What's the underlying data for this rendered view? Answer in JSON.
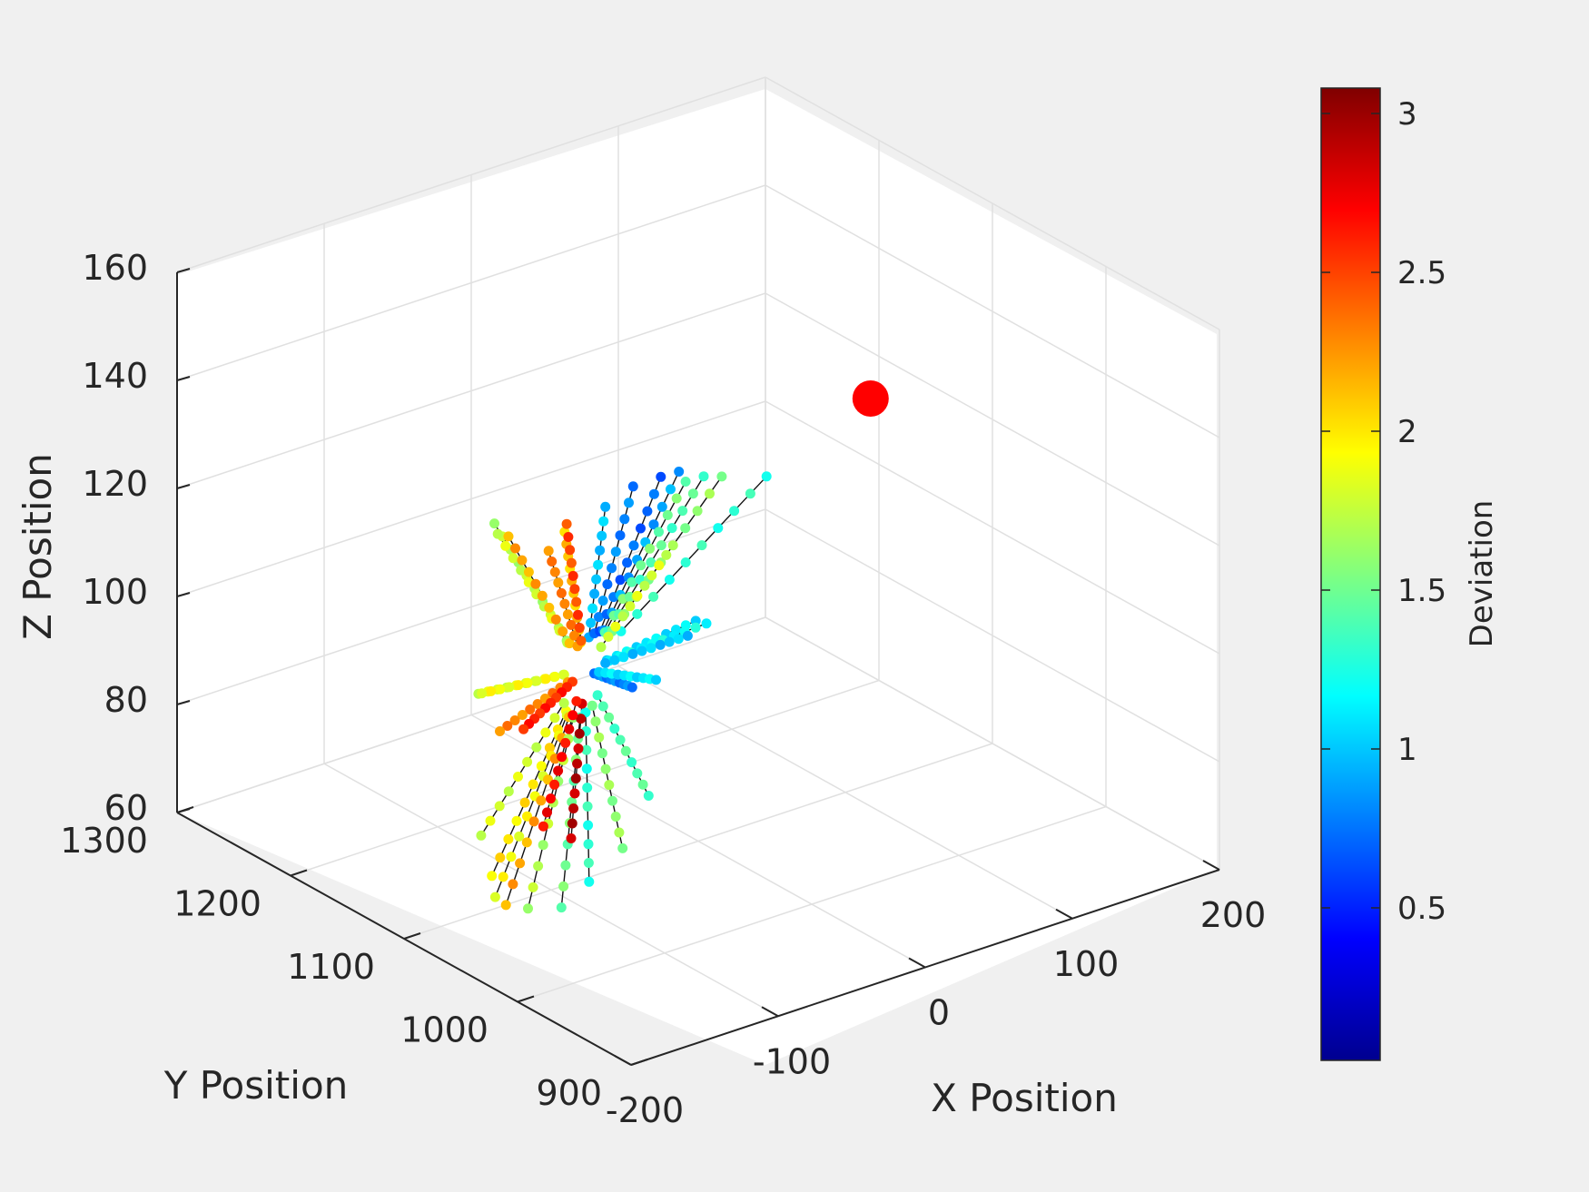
{
  "chart_data": {
    "type": "scatter3d",
    "xlabel": "X Position",
    "ylabel": "Y Position",
    "zlabel": "Z Position",
    "xlim": [
      -200,
      200
    ],
    "ylim": [
      900,
      1300
    ],
    "zlim": [
      60,
      160
    ],
    "xticks": [
      -200,
      -100,
      0,
      100,
      200
    ],
    "yticks": [
      900,
      1000,
      1100,
      1200,
      1300
    ],
    "zticks": [
      60,
      80,
      100,
      120,
      140,
      160
    ],
    "xtick_labels": [
      "-200",
      "-100",
      "0",
      "100",
      "200"
    ],
    "ytick_labels": [
      "900",
      "1000",
      "1100",
      "1200",
      "1300"
    ],
    "ztick_labels": [
      "60",
      "80",
      "100",
      "120",
      "140",
      "160"
    ],
    "grid": true,
    "colormap": "jet",
    "colorbar": {
      "label": "Deviation",
      "range": [
        0.02,
        3.08
      ],
      "ticks": [
        0.5,
        1,
        1.5,
        2,
        2.5,
        3
      ],
      "tick_labels": [
        "0.5",
        "1",
        "1.5",
        "2",
        "2.5",
        "3"
      ],
      "placement": "right"
    },
    "target": {
      "x": 40,
      "y": 1000,
      "z": 150,
      "color": "#ff0000"
    },
    "center": {
      "x": 0,
      "y": 1200,
      "z": 80
    },
    "trajectories": [
      {
        "end": {
          "x": -100,
          "y": 1150,
          "z": 122
        },
        "deviation": 1.7
      },
      {
        "end": {
          "x": -90,
          "y": 1160,
          "z": 118
        },
        "deviation": 1.8
      },
      {
        "end": {
          "x": -75,
          "y": 1170,
          "z": 115
        },
        "deviation": 2.2
      },
      {
        "end": {
          "x": -60,
          "y": 1140,
          "z": 118
        },
        "deviation": 2.1
      },
      {
        "end": {
          "x": -40,
          "y": 1130,
          "z": 122
        },
        "deviation": 1.0
      },
      {
        "end": {
          "x": -25,
          "y": 1125,
          "z": 125
        },
        "deviation": 0.8
      },
      {
        "end": {
          "x": -10,
          "y": 1120,
          "z": 126
        },
        "deviation": 0.7
      },
      {
        "end": {
          "x": 10,
          "y": 1130,
          "z": 124
        },
        "deviation": 0.9
      },
      {
        "end": {
          "x": 30,
          "y": 1150,
          "z": 118
        },
        "deviation": 1.5
      },
      {
        "end": {
          "x": 50,
          "y": 1160,
          "z": 116
        },
        "deviation": 1.4
      },
      {
        "end": {
          "x": 70,
          "y": 1170,
          "z": 113
        },
        "deviation": 1.6
      },
      {
        "end": {
          "x": 85,
          "y": 1150,
          "z": 114
        },
        "deviation": 1.3
      },
      {
        "end": {
          "x": 40,
          "y": 1180,
          "z": 100
        },
        "deviation": 1.8
      },
      {
        "end": {
          "x": -40,
          "y": 1180,
          "z": 108
        },
        "deviation": 2.3
      },
      {
        "end": {
          "x": -20,
          "y": 1190,
          "z": 110
        },
        "deviation": 2.5
      },
      {
        "end": {
          "x": -80,
          "y": 1190,
          "z": 84
        },
        "deviation": 1.8
      },
      {
        "end": {
          "x": -70,
          "y": 1200,
          "z": 82
        },
        "deviation": 1.9
      },
      {
        "end": {
          "x": 60,
          "y": 1180,
          "z": 86
        },
        "deviation": 1.1
      },
      {
        "end": {
          "x": 75,
          "y": 1190,
          "z": 83
        },
        "deviation": 1.2
      },
      {
        "end": {
          "x": 70,
          "y": 1200,
          "z": 80
        },
        "deviation": 1.0
      },
      {
        "end": {
          "x": -50,
          "y": 1210,
          "z": 72
        },
        "deviation": 2.3
      },
      {
        "end": {
          "x": -30,
          "y": 1215,
          "z": 70
        },
        "deviation": 2.6
      },
      {
        "end": {
          "x": 40,
          "y": 1210,
          "z": 72
        },
        "deviation": 0.8
      },
      {
        "end": {
          "x": 60,
          "y": 1215,
          "z": 71
        },
        "deviation": 1.1
      },
      {
        "end": {
          "x": -40,
          "y": 1230,
          "z": 42
        },
        "deviation": 2.0
      },
      {
        "end": {
          "x": -30,
          "y": 1240,
          "z": 36
        },
        "deviation": 1.9
      },
      {
        "end": {
          "x": -15,
          "y": 1250,
          "z": 32
        },
        "deviation": 2.2
      },
      {
        "end": {
          "x": 0,
          "y": 1250,
          "z": 30
        },
        "deviation": 1.7
      },
      {
        "end": {
          "x": 15,
          "y": 1240,
          "z": 30
        },
        "deviation": 1.5
      },
      {
        "end": {
          "x": 30,
          "y": 1235,
          "z": 34
        },
        "deviation": 1.3
      },
      {
        "end": {
          "x": 45,
          "y": 1225,
          "z": 40
        },
        "deviation": 1.6
      },
      {
        "end": {
          "x": 10,
          "y": 1225,
          "z": 45
        },
        "deviation": 2.9
      },
      {
        "end": {
          "x": -5,
          "y": 1230,
          "z": 48
        },
        "deviation": 2.7
      },
      {
        "end": {
          "x": 55,
          "y": 1215,
          "z": 50
        },
        "deviation": 1.4
      },
      {
        "end": {
          "x": -55,
          "y": 1220,
          "z": 52
        },
        "deviation": 1.8
      }
    ]
  }
}
